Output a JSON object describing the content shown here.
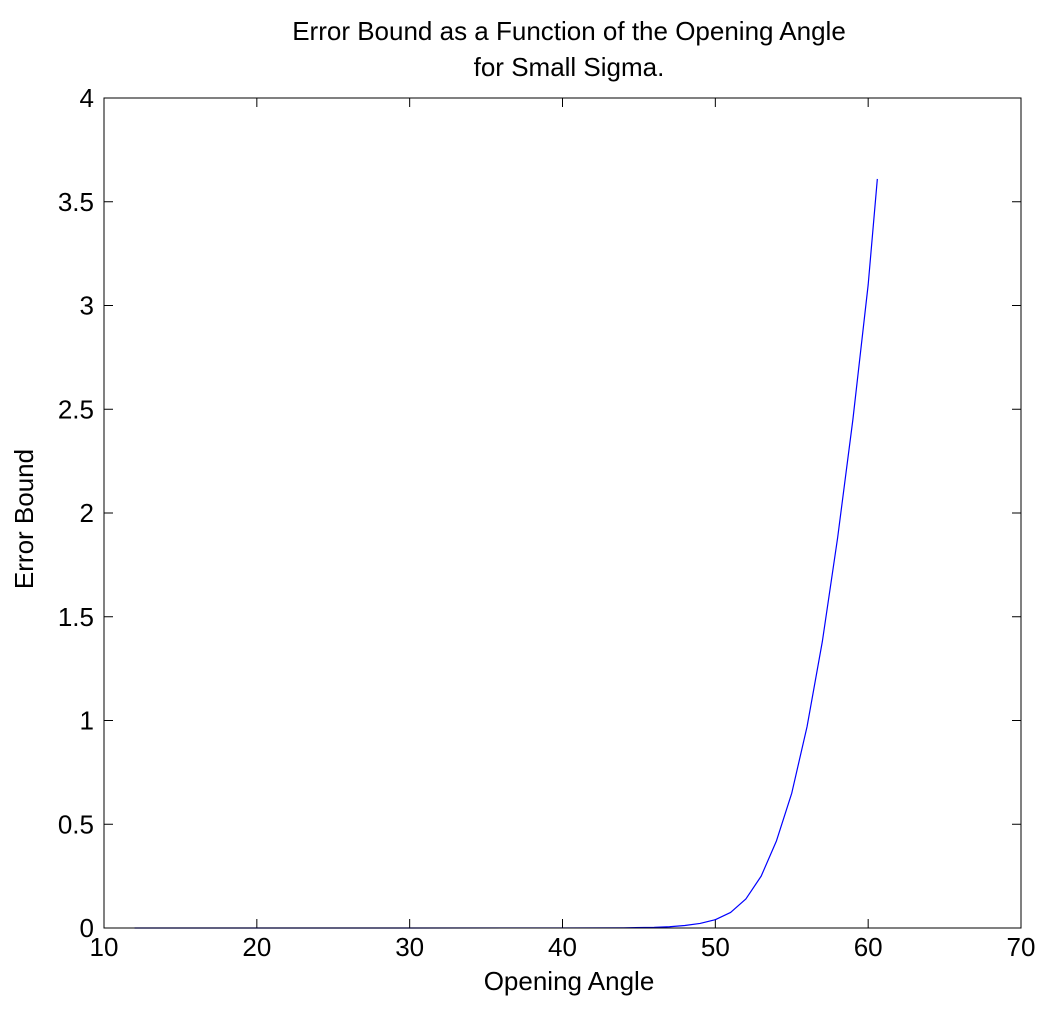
{
  "chart_data": {
    "type": "line",
    "title": "Error Bound as a Function of the Opening Angle",
    "subtitle": "for Small Sigma.",
    "xlabel": "Opening Angle",
    "ylabel": "Error Bound",
    "xlim": [
      10,
      70
    ],
    "ylim": [
      0,
      4
    ],
    "xticks": [
      10,
      20,
      30,
      40,
      50,
      60,
      70
    ],
    "xtick_labels": [
      "10",
      "20",
      "30",
      "40",
      "50",
      "60",
      "70"
    ],
    "yticks": [
      0,
      0.5,
      1,
      1.5,
      2,
      2.5,
      3,
      3.5,
      4
    ],
    "ytick_labels": [
      "0",
      "0.5",
      "1",
      "1.5",
      "2",
      "2.5",
      "3",
      "3.5",
      "4"
    ],
    "grid": false,
    "series": [
      {
        "color": "#0000ff",
        "x": [
          12,
          20,
          30,
          40,
          44,
          46,
          47,
          48,
          49,
          50,
          51,
          52,
          53,
          54,
          55,
          56,
          57,
          58,
          59,
          60,
          60.6
        ],
        "y": [
          0,
          0,
          0,
          0.0003,
          0.001,
          0.003,
          0.006,
          0.012,
          0.022,
          0.04,
          0.075,
          0.14,
          0.25,
          0.42,
          0.65,
          0.97,
          1.38,
          1.88,
          2.45,
          3.1,
          3.61
        ]
      }
    ]
  }
}
